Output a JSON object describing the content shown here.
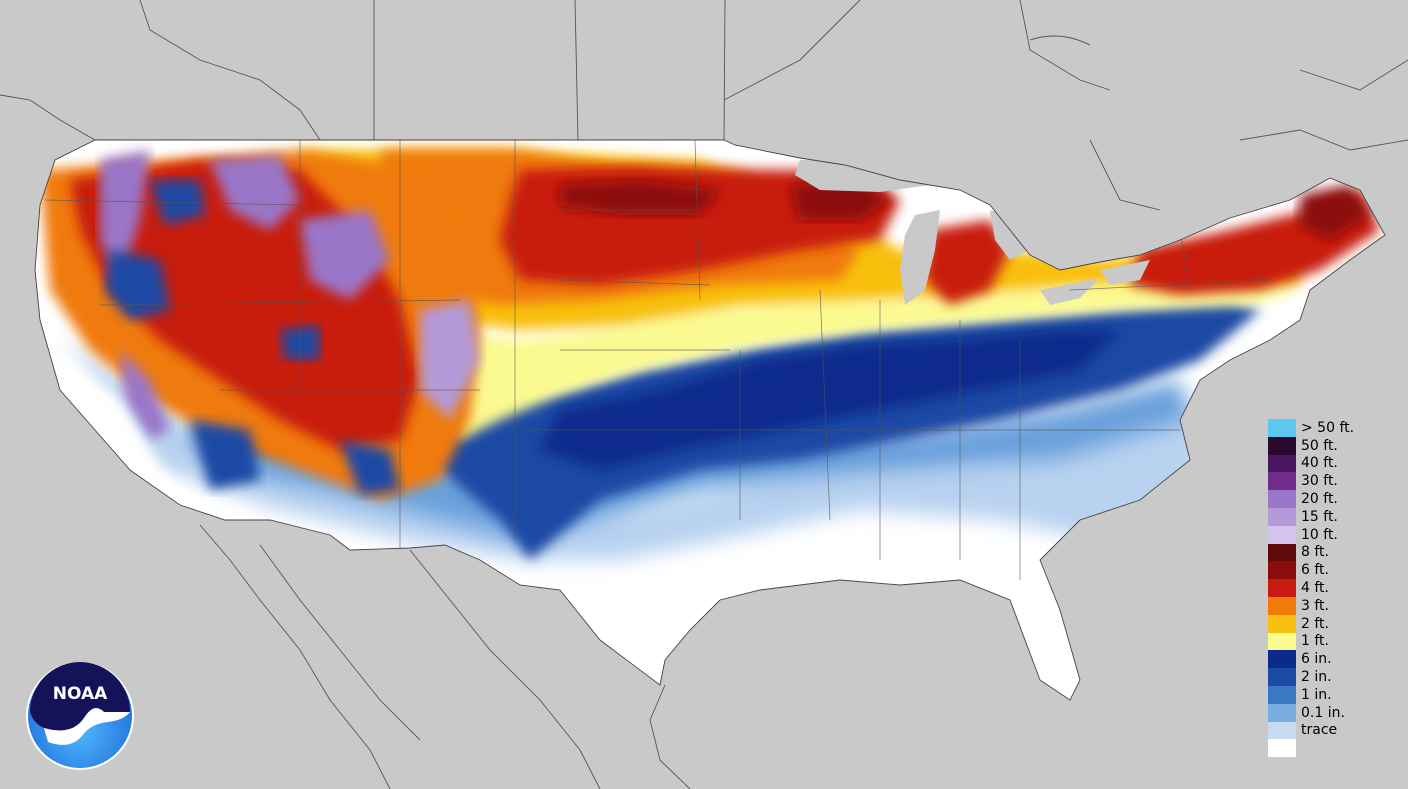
{
  "legend": {
    "items": [
      {
        "label": "> 50 ft.",
        "color": "#5cc8f0"
      },
      {
        "label": "50 ft.",
        "color": "#2a0a2e"
      },
      {
        "label": "40 ft.",
        "color": "#4a1660"
      },
      {
        "label": "30 ft.",
        "color": "#6e2c8c"
      },
      {
        "label": "20 ft.",
        "color": "#9a76c8"
      },
      {
        "label": "15 ft.",
        "color": "#b49ad8"
      },
      {
        "label": "10 ft.",
        "color": "#d4c4ee"
      },
      {
        "label": "8 ft.",
        "color": "#5c0a0a"
      },
      {
        "label": "6 ft.",
        "color": "#8c0c0c"
      },
      {
        "label": "4 ft.",
        "color": "#c81a10"
      },
      {
        "label": "3 ft.",
        "color": "#f07a0a"
      },
      {
        "label": "2 ft.",
        "color": "#f8c010"
      },
      {
        "label": "1 ft.",
        "color": "#fafa90"
      },
      {
        "label": "6 in.",
        "color": "#0c2a8c"
      },
      {
        "label": "2 in.",
        "color": "#1a4aa4"
      },
      {
        "label": "1 in.",
        "color": "#3a78c4"
      },
      {
        "label": "0.1 in.",
        "color": "#7aaee0"
      },
      {
        "label": "trace",
        "color": "#c6daf0"
      },
      {
        "label": "",
        "color": "#ffffff"
      }
    ]
  },
  "logo": {
    "text": "NOAA"
  },
  "colors": {
    "background": "#c9c9c9",
    "border_lines": "#555555"
  }
}
